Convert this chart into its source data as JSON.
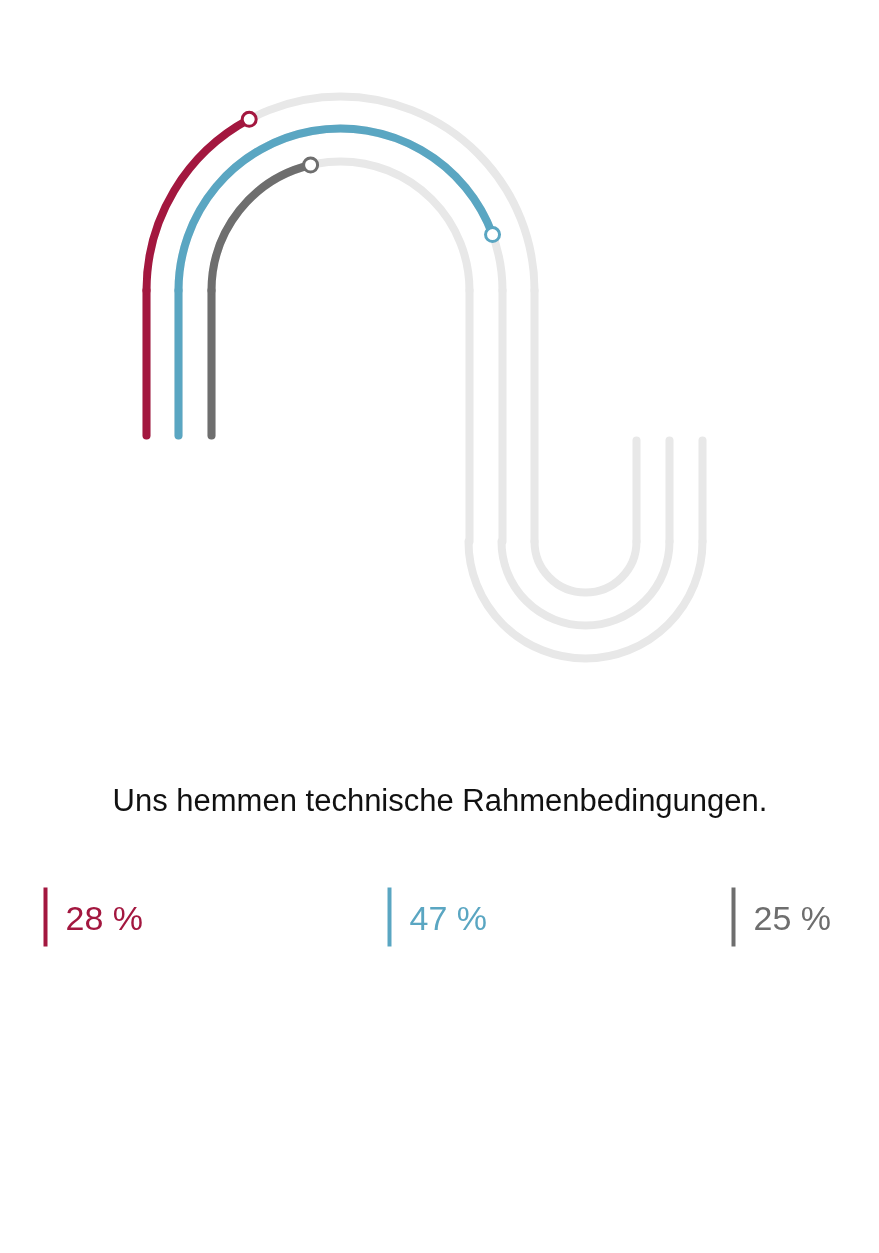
{
  "chart_data": {
    "type": "other",
    "title": "Uns hemmen technische Rahmenbedingungen.",
    "values": [
      28,
      47,
      25
    ],
    "value_labels": [
      "28 %",
      "47 %",
      "25 %"
    ],
    "colors": [
      "#a3173f",
      "#5aa6c2",
      "#6e6e6e"
    ]
  }
}
